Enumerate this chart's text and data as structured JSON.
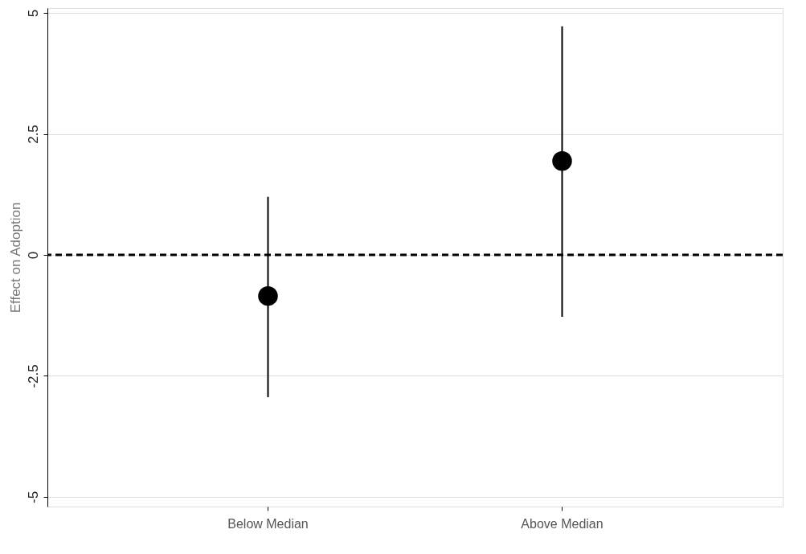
{
  "chart_data": {
    "type": "scatter",
    "ylabel": "Effect on Adoption",
    "categories": [
      "Below Median",
      "Above Median"
    ],
    "series": [
      {
        "color": "#000000",
        "values": [
          -0.85,
          1.94
        ],
        "errors": [
          [
            -2.94,
            1.2
          ],
          [
            -1.28,
            4.72
          ]
        ]
      }
    ],
    "ylim": [
      -5.2,
      5.1
    ],
    "yticks": [
      5,
      2.5,
      0,
      -2.5,
      -5
    ],
    "ref_lines": [
      {
        "axis": "y",
        "value": 0,
        "color": "#000000",
        "line_style": "dashed"
      }
    ],
    "grid": "y",
    "marker": "circle"
  }
}
